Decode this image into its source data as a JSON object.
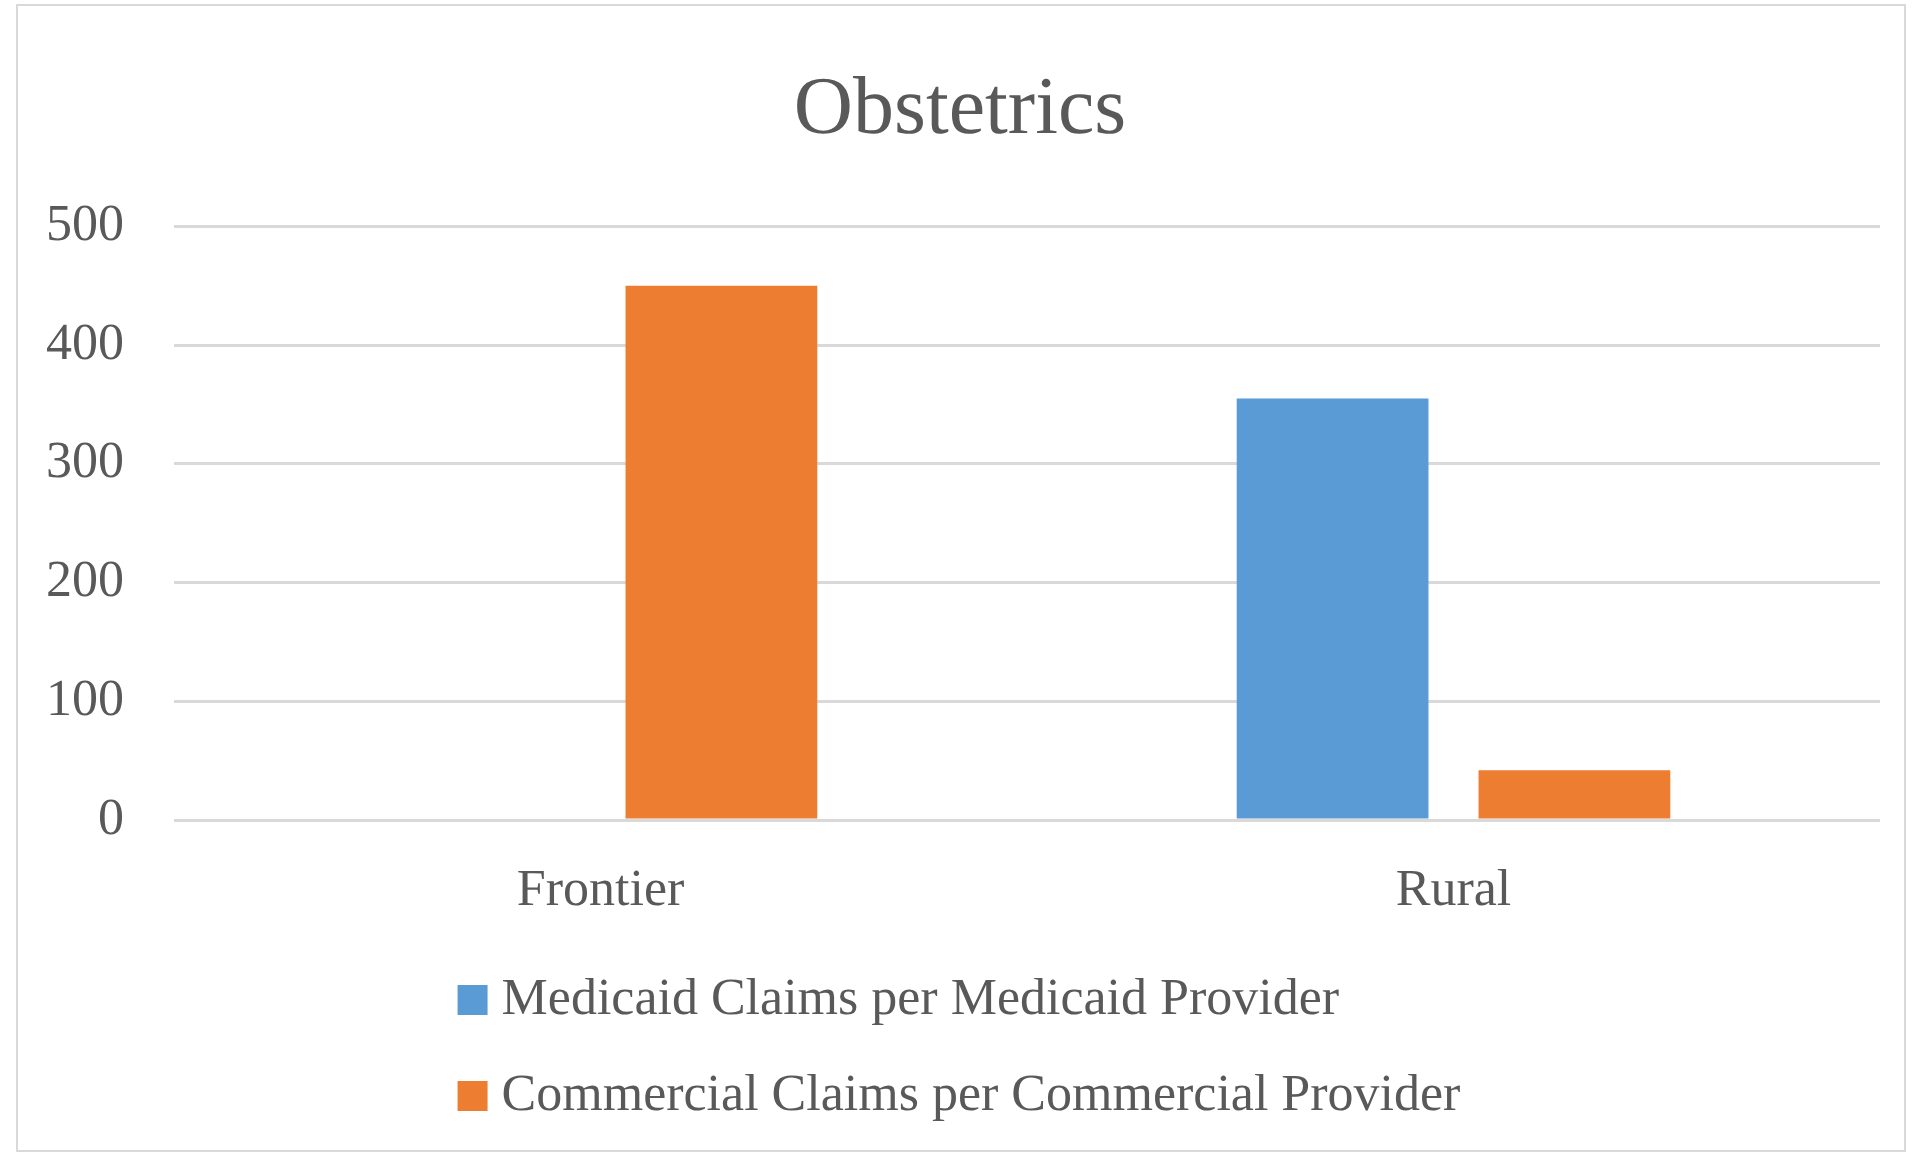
{
  "chart_data": {
    "type": "bar",
    "title": "Obstetrics",
    "categories": [
      "Frontier",
      "Rural"
    ],
    "series": [
      {
        "name": "Medicaid Claims per Medicaid Provider",
        "color": "#5b9bd5",
        "values": [
          null,
          355
        ]
      },
      {
        "name": "Commercial Claims per Commercial Provider",
        "color": "#ed7d31",
        "values": [
          450,
          42
        ]
      }
    ],
    "ylim": [
      0,
      500
    ],
    "yticks": [
      0,
      100,
      200,
      300,
      400,
      500
    ],
    "grid": "y",
    "legend": "bottom"
  }
}
